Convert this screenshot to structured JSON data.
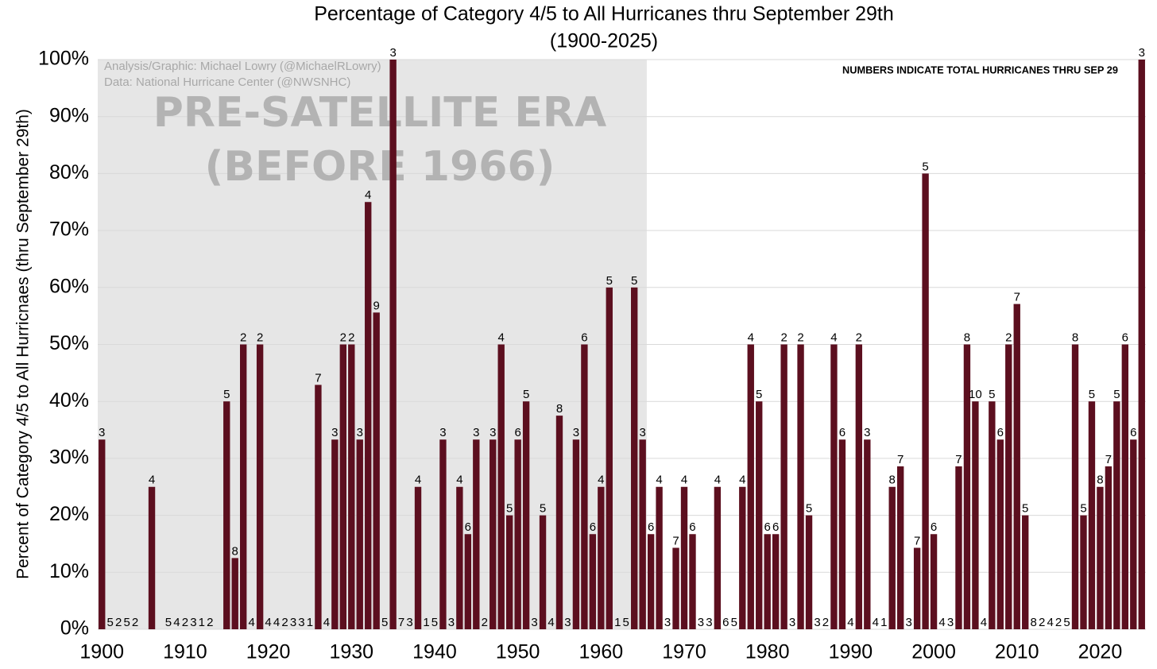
{
  "chart_data": {
    "type": "bar",
    "title": "Percentage of Category 4/5 to All Hurricanes thru September 29th",
    "subtitle": "(1900-2025)",
    "y_label": "Percent of Category 4/5 to All Hurricnaes (thru September 29th)",
    "credits": [
      "Analysis/Graphic: Michael Lowry (@MichaelRLowry)",
      "Data: National Hurricane Center (@NWSNHC)"
    ],
    "shaded_label": [
      "PRE-SATELLITE ERA",
      "(BEFORE 1966)"
    ],
    "shaded_xlim": [
      1899.5,
      1965.5
    ],
    "note": "NUMBERS INDICATE TOTAL HURRICANES THRU SEP 29",
    "color": "#5c0f1f",
    "x": [
      1900,
      1901,
      1902,
      1903,
      1904,
      1905,
      1906,
      1907,
      1908,
      1909,
      1910,
      1911,
      1912,
      1913,
      1914,
      1915,
      1916,
      1917,
      1918,
      1919,
      1920,
      1921,
      1922,
      1923,
      1924,
      1925,
      1926,
      1927,
      1928,
      1929,
      1930,
      1931,
      1932,
      1933,
      1934,
      1935,
      1936,
      1937,
      1938,
      1939,
      1940,
      1941,
      1942,
      1943,
      1944,
      1945,
      1946,
      1947,
      1948,
      1949,
      1950,
      1951,
      1952,
      1953,
      1954,
      1955,
      1956,
      1957,
      1958,
      1959,
      1960,
      1961,
      1962,
      1963,
      1964,
      1965,
      1966,
      1967,
      1968,
      1969,
      1970,
      1971,
      1972,
      1973,
      1974,
      1975,
      1976,
      1977,
      1978,
      1979,
      1980,
      1981,
      1982,
      1983,
      1984,
      1985,
      1986,
      1987,
      1988,
      1989,
      1990,
      1991,
      1992,
      1993,
      1994,
      1995,
      1996,
      1997,
      1998,
      1999,
      2000,
      2001,
      2002,
      2003,
      2004,
      2005,
      2006,
      2007,
      2008,
      2009,
      2010,
      2011,
      2012,
      2013,
      2014,
      2015,
      2016,
      2017,
      2018,
      2019,
      2020,
      2021,
      2022,
      2023,
      2024,
      2025
    ],
    "values": [
      33.3,
      0,
      0,
      0,
      0,
      0,
      25,
      0,
      0,
      0,
      0,
      0,
      0,
      0,
      0,
      40,
      12.5,
      50,
      0,
      50,
      0,
      0,
      0,
      0,
      0,
      0,
      42.9,
      0,
      33.3,
      50,
      50,
      33.3,
      75,
      55.6,
      0,
      100,
      0,
      0,
      25,
      0,
      0,
      33.3,
      0,
      25,
      16.7,
      33.3,
      0,
      33.3,
      50,
      20,
      33.3,
      40,
      0,
      20,
      0,
      37.5,
      0,
      33.3,
      50,
      16.7,
      25,
      60,
      0,
      0,
      60,
      33.3,
      16.7,
      25,
      0,
      14.3,
      25,
      16.7,
      0,
      0,
      25,
      0,
      0,
      25,
      50,
      40,
      16.7,
      16.7,
      50,
      0,
      50,
      20,
      0,
      0,
      50,
      33.3,
      0,
      50,
      33.3,
      0,
      0,
      25,
      28.6,
      0,
      14.3,
      80,
      16.7,
      0,
      0,
      28.6,
      50,
      40,
      0,
      40,
      33.3,
      50,
      57.1,
      20,
      0,
      0,
      0,
      0,
      0,
      50,
      20,
      40,
      25,
      28.6,
      40,
      50,
      33.3,
      100
    ],
    "totals": [
      3,
      5,
      2,
      5,
      2,
      null,
      4,
      null,
      5,
      4,
      2,
      3,
      1,
      2,
      null,
      5,
      8,
      2,
      4,
      2,
      4,
      4,
      2,
      3,
      3,
      1,
      7,
      4,
      3,
      2,
      2,
      3,
      4,
      9,
      5,
      3,
      7,
      3,
      4,
      1,
      5,
      3,
      3,
      4,
      6,
      3,
      2,
      3,
      4,
      5,
      6,
      5,
      3,
      5,
      4,
      8,
      3,
      3,
      6,
      6,
      4,
      5,
      1,
      5,
      5,
      3,
      6,
      4,
      3,
      7,
      4,
      6,
      3,
      3,
      4,
      6,
      5,
      4,
      4,
      5,
      6,
      6,
      2,
      3,
      2,
      5,
      3,
      2,
      4,
      6,
      4,
      2,
      3,
      4,
      1,
      8,
      7,
      3,
      7,
      5,
      6,
      4,
      3,
      7,
      8,
      10,
      4,
      5,
      6,
      2,
      7,
      5,
      8,
      2,
      4,
      2,
      5,
      8,
      5,
      5,
      8,
      7,
      5,
      6,
      6,
      3
    ],
    "xlim": [
      1899.5,
      2025.5
    ],
    "xticks": [
      1900,
      1910,
      1920,
      1930,
      1940,
      1950,
      1960,
      1970,
      1980,
      1990,
      2000,
      2010,
      2020
    ],
    "ylim": [
      0,
      100
    ],
    "yticks": [
      {
        "value": 0,
        "label": "0%"
      },
      {
        "value": 10,
        "label": "10%"
      },
      {
        "value": 20,
        "label": "20%"
      },
      {
        "value": 30,
        "label": "30%"
      },
      {
        "value": 40,
        "label": "40%"
      },
      {
        "value": 50,
        "label": "50%"
      },
      {
        "value": 60,
        "label": "60%"
      },
      {
        "value": 70,
        "label": "70%"
      },
      {
        "value": 80,
        "label": "80%"
      },
      {
        "value": 90,
        "label": "90%"
      },
      {
        "value": 100,
        "label": "100%"
      }
    ],
    "grid": true
  }
}
